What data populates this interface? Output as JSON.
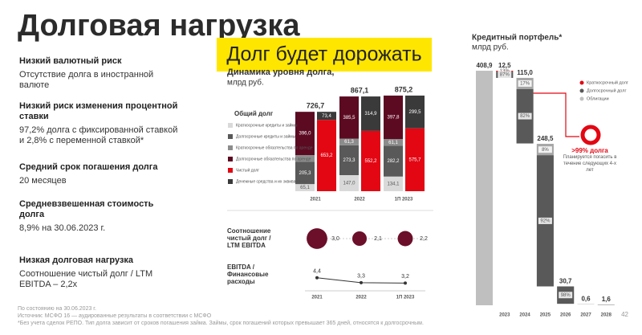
{
  "title": "Долговая нагрузка",
  "banner": "Долг будет дорожать",
  "page_number": "42",
  "points": [
    {
      "heading": "Низкий валютный риск",
      "text": "Отсутствие долга в иностранной валюте"
    },
    {
      "heading": "Низкий риск изменения процентной ставки",
      "text": "97,2% долга с фиксированной ставкой и 2,8% с переменной ставкой*"
    },
    {
      "heading": "Средний срок погашения долга",
      "text": "20 месяцев"
    },
    {
      "heading": "Средневзвешенная стоимость долга",
      "text": "8,9% на 30.06.2023 г."
    },
    {
      "heading": "Низкая долговая нагрузка",
      "text": "Соотношение чистый долг / LTM EBITDA – 2,2x"
    }
  ],
  "footnotes": [
    "По состоянию на 30.06.2023 г.",
    "Источник: МСФО 16 — аудированные результаты в соответствии с МСФО",
    "*Без учета сделок РЕПО. Тип долга зависит от сроков погашения займа. Займы, срок погашений которых превышает 365 дней, относятся к долгосрочным."
  ],
  "chart_data": [
    {
      "type": "bar",
      "title": "Динамика уровня долга,",
      "subtitle": "млрд руб.",
      "legend_title": "Общий долг",
      "categories": [
        "2021",
        "2022",
        "1П 2023"
      ],
      "totals": [
        726.7,
        867.1,
        875.2
      ],
      "total_labels": [
        "726,7",
        "867,1",
        "875,2"
      ],
      "gross_series": [
        {
          "name": "Краткосрочные кредиты и займы",
          "color": "#d9d9d9",
          "values": [
            65.1,
            147.0,
            134.1
          ],
          "value_labels": [
            "65,1",
            "147,0",
            "134,1"
          ]
        },
        {
          "name": "Долгосрочные кредиты и займы",
          "color": "#595959",
          "values": [
            205.3,
            273.3,
            282.2
          ],
          "value_labels": [
            "205,3",
            "273,3",
            "282,2"
          ]
        },
        {
          "name": "Краткосрочные обязательства по аренде",
          "color": "#8c8c8c",
          "values": [
            60.3,
            61.3,
            61.1
          ],
          "value_labels": [
            null,
            "61,3",
            "61,1"
          ]
        },
        {
          "name": "Долгосрочные обязательства по аренде",
          "color": "#5c0a22",
          "values": [
            396.0,
            385.5,
            397.8
          ],
          "value_labels": [
            "396,0",
            "385,5",
            "397,8"
          ]
        }
      ],
      "net_series": [
        {
          "name": "Чистый долг",
          "color": "#e30613",
          "values": [
            653.2,
            552.2,
            575.7
          ],
          "value_labels": [
            "653,2",
            "552,2",
            "575,7"
          ]
        },
        {
          "name": "Денежные средства и их эквиваленты",
          "color": "#3a3a3a",
          "values": [
            73.4,
            314.9,
            299.5
          ],
          "value_labels": [
            "73,4",
            "314,9",
            "299,5"
          ]
        }
      ]
    },
    {
      "type": "bubble",
      "title": [
        "Соотношение",
        "чистый долг /",
        "LTM EBITDA"
      ],
      "categories": [
        "2021",
        "2022",
        "1П 2023"
      ],
      "values": [
        3.0,
        2.1,
        2.2
      ],
      "value_labels": [
        "3,0",
        "2,1",
        "2,2"
      ],
      "color": "#6b0f2a"
    },
    {
      "type": "line",
      "title": [
        "EBITDA /",
        "Финансовые",
        "расходы"
      ],
      "categories": [
        "2021",
        "2022",
        "1П 2023"
      ],
      "values": [
        4.4,
        3.3,
        3.2
      ],
      "value_labels": [
        "4,4",
        "3,3",
        "3,2"
      ],
      "color": "#333333"
    },
    {
      "type": "waterfall",
      "title": "Кредитный портфель*",
      "subtitle": "млрд руб.",
      "categories": [
        null,
        "2023",
        "2024",
        "2025",
        "2026",
        "2027",
        "2028"
      ],
      "values": [
        408.9,
        12.5,
        115.0,
        248.5,
        30.7,
        0.6,
        1.6
      ],
      "value_labels": [
        "408,9",
        "12,5",
        "115,0",
        "248,5",
        "30,7",
        "0,6",
        "1,6"
      ],
      "color": "#bfbfbf",
      "segments": [
        null,
        [
          {
            "share": 13,
            "label": "13%",
            "color": "#e30613"
          },
          {
            "share": 87,
            "label": "87%",
            "color": "#595959"
          }
        ],
        [
          {
            "share": 17,
            "label": "17%",
            "color": "#a6a6a6"
          },
          {
            "share": 82,
            "label": "82%",
            "color": "#595959"
          }
        ],
        [
          {
            "share": 8,
            "label": "8%",
            "color": "#a6a6a6"
          },
          {
            "share": 92,
            "label": "92%",
            "color": "#595959"
          }
        ],
        [
          {
            "share": 98,
            "label": "98%",
            "color": "#595959"
          }
        ],
        null,
        null
      ],
      "legend": [
        {
          "name": "Краткосрочный долг",
          "color": "#e30613"
        },
        {
          "name": "Долгосрочный долг",
          "color": "#595959"
        },
        {
          "name": "Облигации",
          "color": "#bfbfbf"
        }
      ],
      "annotation": {
        "headline": ">99% долга",
        "text": "Планируется погасить в течение следующих 4-х лет"
      }
    }
  ]
}
